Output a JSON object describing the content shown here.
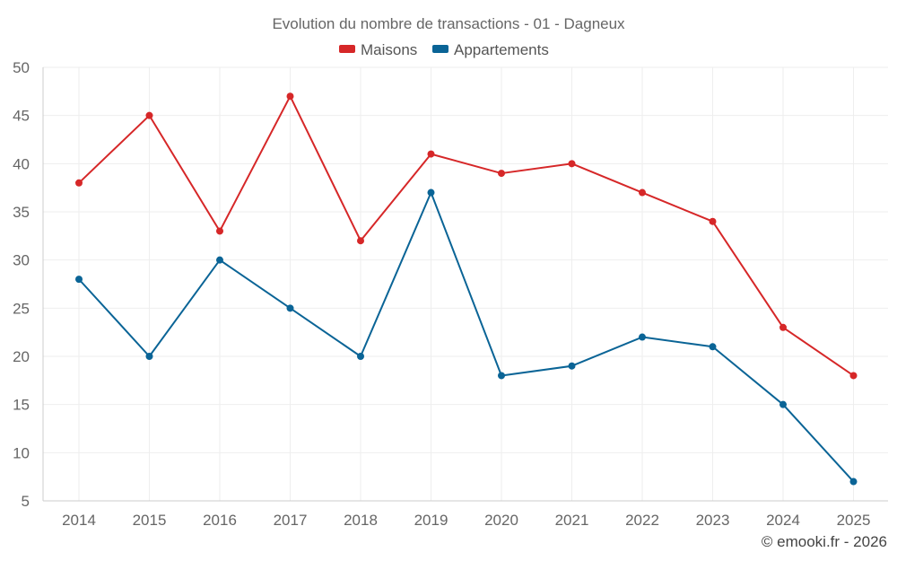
{
  "chart_data": {
    "type": "line",
    "title": "Evolution du nombre de transactions - 01 - Dagneux",
    "categories": [
      "2014",
      "2015",
      "2016",
      "2017",
      "2018",
      "2019",
      "2020",
      "2021",
      "2022",
      "2023",
      "2024",
      "2025"
    ],
    "series": [
      {
        "name": "Maisons",
        "color": "#d62728",
        "values": [
          38,
          45,
          33,
          47,
          32,
          41,
          39,
          40,
          37,
          34,
          23,
          18
        ]
      },
      {
        "name": "Appartements",
        "color": "#0a6496",
        "values": [
          28,
          20,
          30,
          25,
          20,
          37,
          18,
          19,
          22,
          21,
          15,
          7
        ]
      }
    ],
    "ylim": [
      5,
      50
    ],
    "yticks": [
      5,
      10,
      15,
      20,
      25,
      30,
      35,
      40,
      45,
      50
    ],
    "xlabel": "",
    "ylabel": "",
    "grid": true,
    "legend_position": "top-center",
    "credit": "© emooki.fr - 2026"
  }
}
